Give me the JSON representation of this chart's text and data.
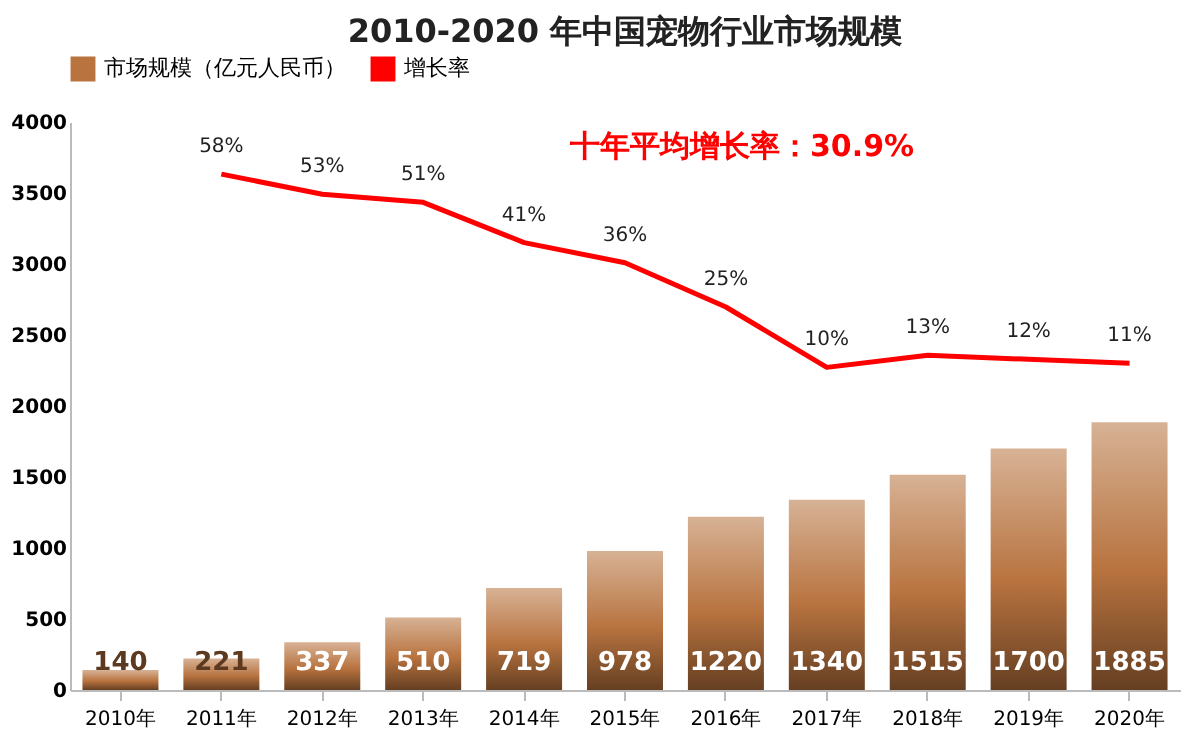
{
  "chart_data": {
    "type": "bar",
    "title": "2010-2020 年中国宠物行业市场规模",
    "categories": [
      "2010年",
      "2011年",
      "2012年",
      "2013年",
      "2014年",
      "2015年",
      "2016年",
      "2017年",
      "2018年",
      "2019年",
      "2020年"
    ],
    "series": [
      {
        "name": "市场规模（亿元人民币）",
        "color": "#b8733f",
        "values": [
          140,
          221,
          337,
          510,
          719,
          978,
          1220,
          1340,
          1515,
          1700,
          1885
        ]
      },
      {
        "name": "增长率",
        "type": "line",
        "axis": "y2",
        "color": "#ff0000",
        "values": [
          null,
          58,
          53,
          51,
          41,
          36,
          25,
          10,
          13,
          12,
          11
        ],
        "value_labels": [
          null,
          "58%",
          "53%",
          "51%",
          "41%",
          "36%",
          "25%",
          "10%",
          "13%",
          "12%",
          "11%"
        ]
      }
    ],
    "ylim": [
      0,
      4000
    ],
    "yticks": [
      0,
      500,
      1000,
      1500,
      2000,
      2500,
      3000,
      3500,
      4000
    ],
    "data_labels": true,
    "grid": false,
    "legend": "top",
    "marker": "none",
    "annotations": [
      "十年平均增长率：30.9%"
    ]
  }
}
